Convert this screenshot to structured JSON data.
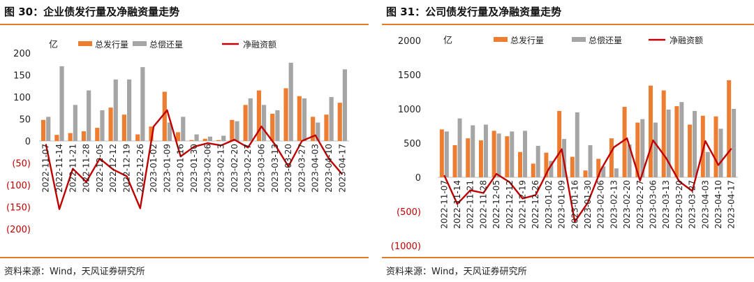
{
  "colors": {
    "accent_rule": "#e07b2a",
    "issuance": "#ed7d31",
    "repayment": "#a5a5a5",
    "net_financing": "#c00000",
    "negative_tick": "#c00000"
  },
  "charts": [
    {
      "title": "图 30：企业债发行量及净融资量走势",
      "source": "资料来源：Wind，天风证券研究所",
      "unit": "亿",
      "chart_data": {
        "type": "bar",
        "ylim": [
          -200,
          200
        ],
        "yticks": [
          200,
          150,
          100,
          50,
          0,
          -50,
          -100,
          -150,
          -200
        ],
        "ytick_labels": [
          "200",
          "150",
          "100",
          "50",
          "0",
          "(50)",
          "(100)",
          "(150)",
          "(200)"
        ],
        "categories": [
          "2022-11-07",
          "2022-11-14",
          "2022-11-21",
          "2022-11-28",
          "2022-12-05",
          "2022-12-12",
          "2022-12-19",
          "2022-12-26",
          "2023-01-02",
          "2023-01-09",
          "2023-01-16",
          "2023-01-30",
          "2023-02-06",
          "2023-02-13",
          "2023-02-20",
          "2023-02-27",
          "2023-03-06",
          "2023-03-13",
          "2023-03-20",
          "2023-03-27",
          "2023-04-03",
          "2023-04-10",
          "2023-04-17"
        ],
        "series": [
          {
            "name": "总发行量",
            "kind": "bar",
            "values": [
              48,
              14,
              18,
              22,
              30,
              76,
              60,
              15,
              33,
              112,
              20,
              2,
              5,
              2,
              48,
              82,
              115,
              62,
              120,
              102,
              55,
              60,
              87
            ]
          },
          {
            "name": "总偿还量",
            "kind": "bar",
            "values": [
              55,
              170,
              82,
              115,
              70,
              140,
              140,
              168,
              0,
              42,
              55,
              15,
              10,
              12,
              45,
              97,
              82,
              70,
              178,
              97,
              42,
              100,
              163
            ]
          },
          {
            "name": "净融资额",
            "kind": "line",
            "values": [
              -7,
              -155,
              -63,
              -93,
              -40,
              -65,
              -80,
              -153,
              33,
              70,
              -35,
              -13,
              -5,
              -10,
              3,
              -15,
              33,
              -8,
              -58,
              0,
              13,
              -40,
              -76
            ]
          }
        ],
        "legend_position": "top"
      }
    },
    {
      "title": "图 31：公司债发行量及净融资量走势",
      "source": "资料来源：Wind，天风证券研究所",
      "unit": "亿",
      "chart_data": {
        "type": "bar",
        "ylim": [
          -1000,
          2000
        ],
        "yticks": [
          2000,
          1500,
          1000,
          500,
          0,
          -500,
          -1000
        ],
        "ytick_labels": [
          "2000",
          "1500",
          "1000",
          "500",
          "0",
          "(500)",
          "(1000)"
        ],
        "categories": [
          "2022-11-07",
          "2022-11-14",
          "2022-11-21",
          "2022-11-28",
          "2022-12-05",
          "2022-12-12",
          "2022-12-19",
          "2022-12-26",
          "2023-01-02",
          "2023-01-09",
          "2023-01-16",
          "2023-01-30",
          "2023-02-06",
          "2023-02-13",
          "2023-02-20",
          "2023-02-27",
          "2023-03-06",
          "2023-03-13",
          "2023-03-20",
          "2023-03-27",
          "2023-04-03",
          "2023-04-10",
          "2023-04-17"
        ],
        "series": [
          {
            "name": "总发行量",
            "kind": "bar",
            "values": [
              700,
              470,
              570,
              540,
              680,
              600,
              370,
              200,
              360,
              970,
              300,
              100,
              270,
              570,
              1030,
              800,
              1340,
              1270,
              1040,
              770,
              900,
              890,
              1420
            ]
          },
          {
            "name": "总偿还量",
            "kind": "bar",
            "values": [
              670,
              860,
              760,
              770,
              640,
              670,
              680,
              460,
              240,
              560,
              950,
              470,
              160,
              130,
              480,
              850,
              800,
              990,
              1100,
              970,
              370,
              710,
              1000
            ]
          },
          {
            "name": "净融资额",
            "kind": "line",
            "values": [
              30,
              -390,
              -190,
              -230,
              50,
              -70,
              -310,
              -260,
              120,
              410,
              -650,
              -370,
              110,
              440,
              570,
              -50,
              540,
              280,
              -60,
              -200,
              530,
              180,
              420
            ]
          }
        ],
        "legend_position": "top"
      }
    }
  ]
}
